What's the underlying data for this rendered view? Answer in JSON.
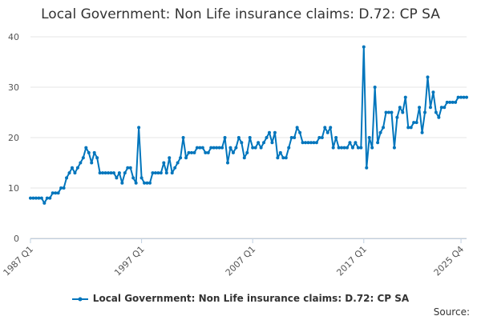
{
  "chart_data": {
    "type": "line",
    "title": "Local Government: Non Life insurance claims: D.72: CP SA",
    "xlabel": "",
    "ylabel": "",
    "ylim": [
      0,
      40
    ],
    "yticks": [
      0,
      10,
      20,
      30,
      40
    ],
    "xticks": [
      {
        "label": "1987 Q1",
        "index": 0
      },
      {
        "label": "1997 Q1",
        "index": 40
      },
      {
        "label": "2007 Q1",
        "index": 80
      },
      {
        "label": "2017 Q1",
        "index": 120
      },
      {
        "label": "2025 Q4",
        "index": 155
      }
    ],
    "grid": "horizontal",
    "legend_position": "bottom",
    "series": [
      {
        "name": "Local Government: Non Life insurance claims: D.72: CP SA",
        "color": "#0075bc",
        "values": [
          8,
          8,
          8,
          8,
          8,
          7,
          8,
          8,
          9,
          9,
          9,
          10,
          10,
          12,
          13,
          14,
          13,
          14,
          15,
          16,
          18,
          17,
          15,
          17,
          16,
          13,
          13,
          13,
          13,
          13,
          13,
          12,
          13,
          11,
          13,
          14,
          14,
          12,
          11,
          22,
          12,
          11,
          11,
          11,
          13,
          13,
          13,
          13,
          15,
          13,
          16,
          13,
          14,
          15,
          16,
          20,
          16,
          17,
          17,
          17,
          18,
          18,
          18,
          17,
          17,
          18,
          18,
          18,
          18,
          18,
          20,
          15,
          18,
          17,
          18,
          20,
          19,
          16,
          17,
          20,
          18,
          18,
          19,
          18,
          19,
          20,
          21,
          19,
          21,
          16,
          17,
          16,
          16,
          18,
          20,
          20,
          22,
          21,
          19,
          19,
          19,
          19,
          19,
          19,
          20,
          20,
          22,
          21,
          22,
          18,
          20,
          18,
          18,
          18,
          18,
          19,
          18,
          19,
          18,
          18,
          38,
          14,
          20,
          18,
          30,
          19,
          21,
          22,
          25,
          25,
          25,
          18,
          24,
          26,
          25,
          28,
          22,
          22,
          23,
          23,
          26,
          21,
          25,
          32,
          26,
          29,
          25,
          24,
          26,
          26,
          27,
          27,
          27,
          27,
          28,
          28,
          28,
          28
        ]
      }
    ],
    "source_label": "Source:"
  }
}
